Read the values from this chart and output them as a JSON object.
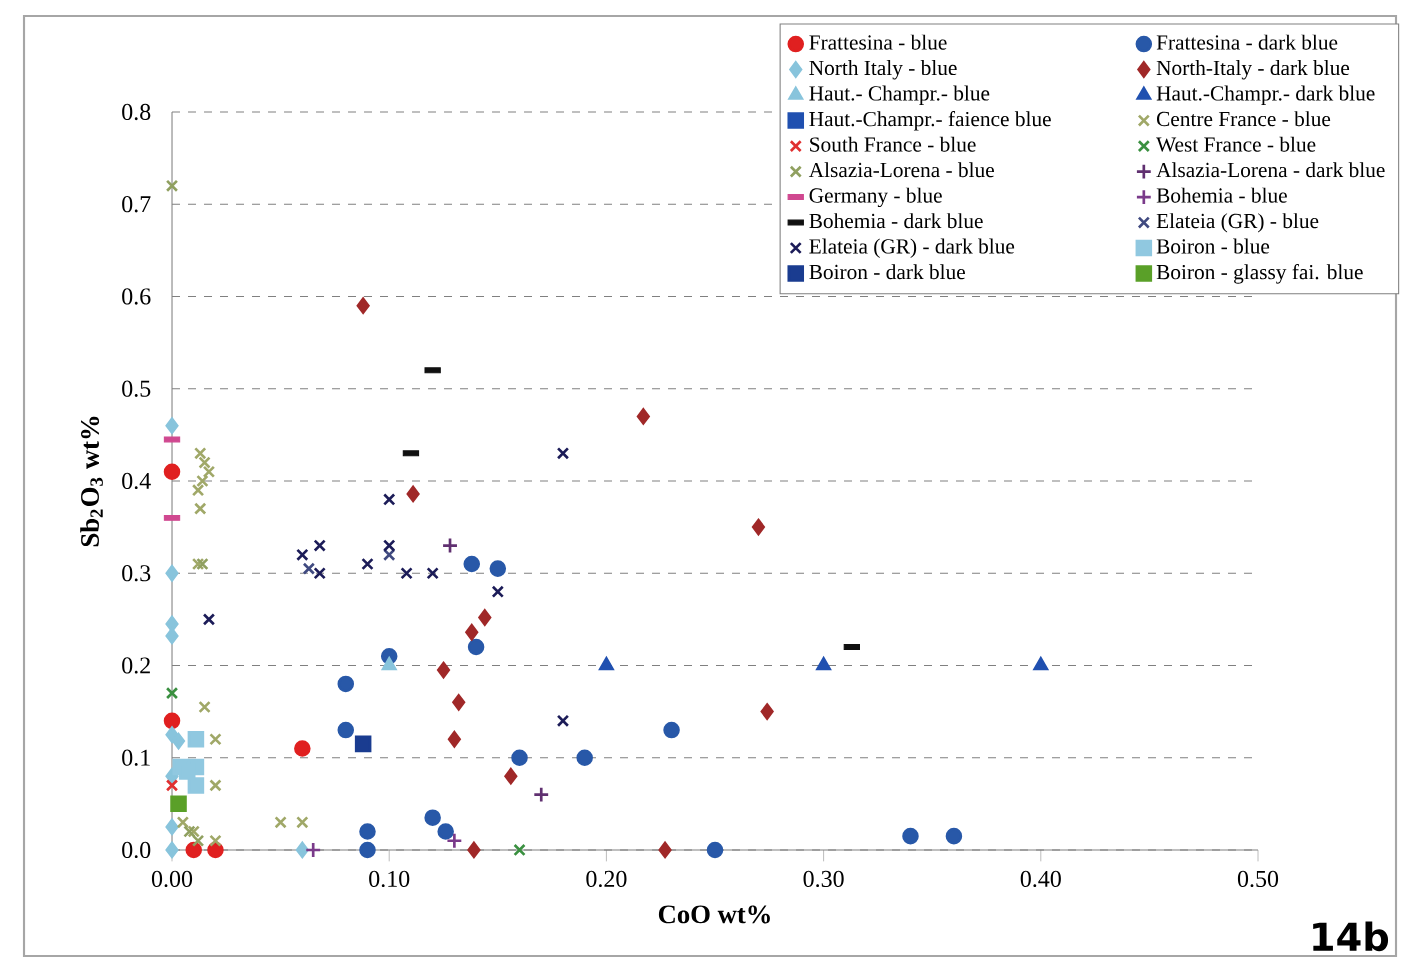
{
  "chart_data": {
    "type": "scatter",
    "xlabel": "CoO wt%",
    "ylabel": "Sb$_{2}$O$_{3}$ wt%",
    "xlim": [
      0,
      0.5
    ],
    "ylim": [
      0,
      0.8
    ],
    "xticks": [
      {
        "value": 0,
        "label": "0.00"
      },
      {
        "value": 0.1,
        "label": "0.10"
      },
      {
        "value": 0.2,
        "label": "0.20"
      },
      {
        "value": 0.3,
        "label": "0.30"
      },
      {
        "value": 0.4,
        "label": "0.40"
      },
      {
        "value": 0.5,
        "label": "0.50"
      }
    ],
    "yticks": [
      {
        "value": 0,
        "label": "0.0"
      },
      {
        "value": 0.1,
        "label": "0.1"
      },
      {
        "value": 0.2,
        "label": "0.2"
      },
      {
        "value": 0.3,
        "label": "0.3"
      },
      {
        "value": 0.4,
        "label": "0.4"
      },
      {
        "value": 0.5,
        "label": "0.5"
      },
      {
        "value": 0.6,
        "label": "0.6"
      },
      {
        "value": 0.7,
        "label": "0.7"
      },
      {
        "value": 0.8,
        "label": "0.8"
      }
    ],
    "grid": "y",
    "legend": "top right",
    "annotations": [
      "14b"
    ],
    "series": [
      {
        "name": "Frattesina - blue",
        "color": "#e02020",
        "marker": "circle",
        "x": [
          0,
          0,
          0.06,
          0.01,
          0.02
        ],
        "values": [
          0.41,
          0.14,
          0.11,
          0,
          0
        ]
      },
      {
        "name": "Frattesina - dark blue",
        "color": "#2858a8",
        "marker": "circle",
        "x": [
          0.09,
          0.09,
          0.08,
          0.08,
          0.1,
          0.12,
          0.126,
          0.138,
          0.15,
          0.14,
          0.16,
          0.19,
          0.23,
          0.25,
          0.34,
          0.36
        ],
        "values": [
          0.02,
          0,
          0.18,
          0.13,
          0.21,
          0.035,
          0.02,
          0.31,
          0.305,
          0.22,
          0.1,
          0.1,
          0.13,
          0,
          0.015,
          0.015
        ]
      },
      {
        "name": "North Italy - blue",
        "color": "#88c4dc",
        "marker": "diamond",
        "x": [
          0,
          0,
          0,
          0,
          0,
          0.003,
          0,
          0,
          0,
          0.06
        ],
        "values": [
          0.46,
          0.3,
          0.245,
          0.232,
          0.125,
          0.118,
          0.08,
          0.025,
          0,
          0
        ]
      },
      {
        "name": "North-Italy - dark blue",
        "color": "#a02828",
        "marker": "diamond",
        "x": [
          0.088,
          0.111,
          0.138,
          0.144,
          0.125,
          0.132,
          0.13,
          0.156,
          0.139,
          0.217,
          0.27,
          0.274,
          0.227
        ],
        "values": [
          0.59,
          0.386,
          0.236,
          0.252,
          0.195,
          0.16,
          0.12,
          0.08,
          0,
          0.47,
          0.35,
          0.15,
          0
        ]
      },
      {
        "name": "Haut.- Champr.- blue",
        "color": "#88c4dc",
        "marker": "triangle",
        "x": [
          0.1
        ],
        "values": [
          0.2
        ]
      },
      {
        "name": "Haut.-Champr.- dark blue",
        "color": "#2050b0",
        "marker": "triangle",
        "x": [
          0.2,
          0.3,
          0.4
        ],
        "values": [
          0.2,
          0.2,
          0.2
        ]
      },
      {
        "name": "Haut.-Champr.- faience blue",
        "color": "#2050b0",
        "marker": "square"
      },
      {
        "name": "Centre France - blue",
        "color": "#a0a868",
        "marker": "cross",
        "x": [
          0.013,
          0.015,
          0.017,
          0.014,
          0.012,
          0.013,
          0.012,
          0.015,
          0.02,
          0.02,
          0.05,
          0.06,
          0.005,
          0.01,
          0.02
        ],
        "values": [
          0.43,
          0.42,
          0.41,
          0.4,
          0.39,
          0.37,
          0.31,
          0.155,
          0.12,
          0.07,
          0.03,
          0.03,
          0.03,
          0.02,
          0.01
        ]
      },
      {
        "name": "South France - blue",
        "color": "#e03030",
        "marker": "cross",
        "x": [
          0
        ],
        "values": [
          0.07
        ]
      },
      {
        "name": "West France - blue",
        "color": "#3a9040",
        "marker": "cross",
        "x": [
          0,
          0.16
        ],
        "values": [
          0.17,
          0
        ]
      },
      {
        "name": "Alsazia-Lorena - blue",
        "color": "#90a060",
        "marker": "cross",
        "x": [
          0,
          0.014,
          0.012,
          0.008
        ],
        "values": [
          0.72,
          0.31,
          0.01,
          0.02
        ]
      },
      {
        "name": "Alsazia-Lorena - dark blue",
        "color": "#603070",
        "marker": "plus",
        "x": [
          0.128,
          0.17
        ],
        "values": [
          0.33,
          0.06
        ]
      },
      {
        "name": "Germany - blue",
        "color": "#d04890",
        "x": [
          0,
          0
        ],
        "values": [
          0.445,
          0.36
        ]
      },
      {
        "name": "Bohemia - blue",
        "color": "#7a3a8a",
        "marker": "plus",
        "x": [
          0.065,
          0.13
        ],
        "values": [
          0,
          0.01
        ]
      },
      {
        "name": "Bohemia - dark blue",
        "color": "#101010",
        "x": [
          0.12,
          0.11,
          0.313
        ],
        "values": [
          0.52,
          0.43,
          0.22
        ]
      },
      {
        "name": "Elateia (GR) - blue",
        "color": "#404a80",
        "marker": "cross",
        "x": [
          0.063,
          0.1
        ],
        "values": [
          0.305,
          0.32
        ]
      },
      {
        "name": "Elateia (GR) - dark blue",
        "color": "#1c1c58",
        "marker": "cross",
        "x": [
          0.017,
          0.06,
          0.068,
          0.068,
          0.09,
          0.1,
          0.1,
          0.108,
          0.12,
          0.15,
          0.18,
          0.18
        ],
        "values": [
          0.25,
          0.32,
          0.33,
          0.3,
          0.31,
          0.38,
          0.33,
          0.3,
          0.3,
          0.28,
          0.43,
          0.14
        ]
      },
      {
        "name": "Boiron - blue",
        "color": "#90c8e0",
        "marker": "square",
        "x": [
          0.004,
          0.011,
          0.011,
          0.011,
          0.007
        ],
        "values": [
          0.09,
          0.12,
          0.09,
          0.07,
          0.085
        ]
      },
      {
        "name": "Boiron - dark blue",
        "color": "#1a3c90",
        "marker": "square",
        "x": [
          0.088
        ],
        "values": [
          0.115
        ]
      },
      {
        "name": "Boiron - glassy fai. blue",
        "color": "#5aa028",
        "marker": "square",
        "x": [
          0.003
        ],
        "values": [
          0.05
        ]
      }
    ]
  }
}
